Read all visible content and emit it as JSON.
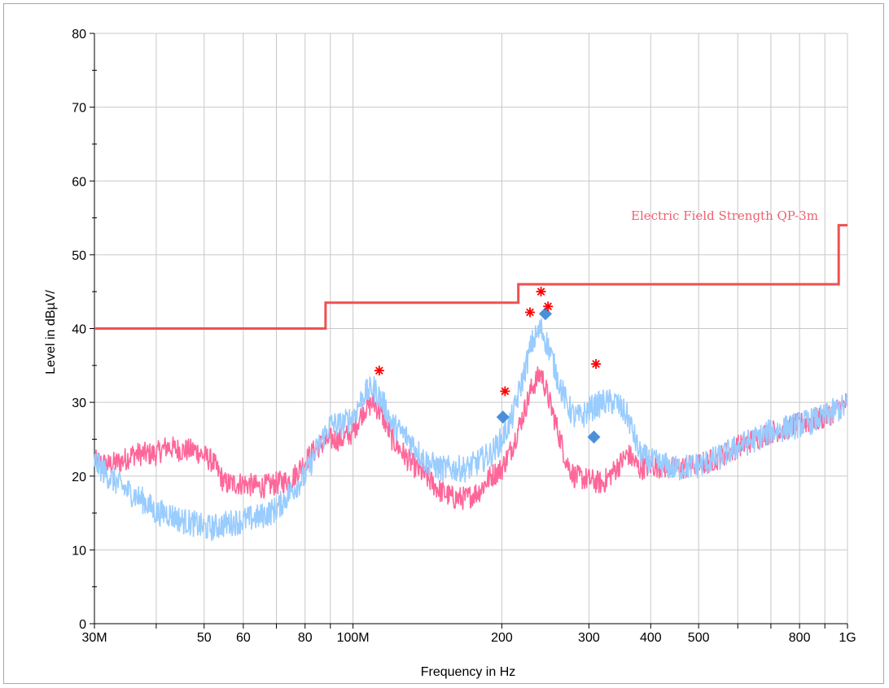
{
  "chart_data": {
    "type": "line",
    "title": "",
    "xlabel": "Frequency in Hz",
    "ylabel": "Level in dBµV/",
    "xscale": "log",
    "xlim": [
      30000000,
      1000000000
    ],
    "ylim": [
      0,
      80
    ],
    "grid": true,
    "x_ticks": [
      {
        "value": 30000000,
        "label": "30M"
      },
      {
        "value": 40000000,
        "label": ""
      },
      {
        "value": 50000000,
        "label": "50"
      },
      {
        "value": 60000000,
        "label": "60"
      },
      {
        "value": 70000000,
        "label": ""
      },
      {
        "value": 80000000,
        "label": "80"
      },
      {
        "value": 90000000,
        "label": ""
      },
      {
        "value": 100000000,
        "label": "100M"
      },
      {
        "value": 200000000,
        "label": "200"
      },
      {
        "value": 300000000,
        "label": "300"
      },
      {
        "value": 400000000,
        "label": "400"
      },
      {
        "value": 500000000,
        "label": "500"
      },
      {
        "value": 600000000,
        "label": ""
      },
      {
        "value": 700000000,
        "label": ""
      },
      {
        "value": 800000000,
        "label": "800"
      },
      {
        "value": 900000000,
        "label": ""
      },
      {
        "value": 1000000000,
        "label": "1G"
      }
    ],
    "y_ticks": [
      {
        "value": 0,
        "label": "0"
      },
      {
        "value": 10,
        "label": "10"
      },
      {
        "value": 20,
        "label": "20"
      },
      {
        "value": 30,
        "label": "30"
      },
      {
        "value": 40,
        "label": "40"
      },
      {
        "value": 50,
        "label": "50"
      },
      {
        "value": 60,
        "label": "60"
      },
      {
        "value": 70,
        "label": "70"
      },
      {
        "value": 80,
        "label": "80"
      }
    ],
    "limit_line": {
      "name": "Electric Field Strength QP-3m",
      "color": "#f05050",
      "points": [
        [
          30000000,
          40
        ],
        [
          88000000,
          40
        ],
        [
          88000000,
          43.5
        ],
        [
          216000000,
          43.5
        ],
        [
          216000000,
          46
        ],
        [
          960000000,
          46
        ],
        [
          960000000,
          54
        ],
        [
          1000000000,
          54
        ]
      ]
    },
    "series": [
      {
        "color": "#ff6699",
        "points": [
          [
            30000000,
            22
          ],
          [
            32000000,
            21.5
          ],
          [
            34000000,
            22
          ],
          [
            36000000,
            23
          ],
          [
            38000000,
            23
          ],
          [
            40000000,
            23
          ],
          [
            42000000,
            24
          ],
          [
            45000000,
            23.5
          ],
          [
            48000000,
            23.5
          ],
          [
            52000000,
            22
          ],
          [
            55000000,
            19
          ],
          [
            60000000,
            19
          ],
          [
            65000000,
            18.5
          ],
          [
            70000000,
            19
          ],
          [
            75000000,
            19.5
          ],
          [
            80000000,
            22
          ],
          [
            85000000,
            24
          ],
          [
            90000000,
            25
          ],
          [
            95000000,
            25
          ],
          [
            100000000,
            26
          ],
          [
            105000000,
            29
          ],
          [
            110000000,
            30
          ],
          [
            115000000,
            28
          ],
          [
            120000000,
            25
          ],
          [
            130000000,
            22
          ],
          [
            140000000,
            20
          ],
          [
            150000000,
            18
          ],
          [
            160000000,
            17
          ],
          [
            170000000,
            17
          ],
          [
            180000000,
            18
          ],
          [
            190000000,
            20
          ],
          [
            200000000,
            21
          ],
          [
            210000000,
            24
          ],
          [
            220000000,
            28
          ],
          [
            230000000,
            32
          ],
          [
            240000000,
            34
          ],
          [
            250000000,
            30
          ],
          [
            260000000,
            26
          ],
          [
            270000000,
            22
          ],
          [
            280000000,
            20
          ],
          [
            300000000,
            19.5
          ],
          [
            320000000,
            19
          ],
          [
            340000000,
            21
          ],
          [
            360000000,
            23
          ],
          [
            380000000,
            21
          ],
          [
            400000000,
            21.5
          ],
          [
            450000000,
            21
          ],
          [
            500000000,
            21.5
          ],
          [
            550000000,
            22.5
          ],
          [
            600000000,
            24
          ],
          [
            650000000,
            25
          ],
          [
            700000000,
            26
          ],
          [
            750000000,
            26.5
          ],
          [
            800000000,
            27
          ],
          [
            850000000,
            27.5
          ],
          [
            900000000,
            28
          ],
          [
            950000000,
            29
          ],
          [
            1000000000,
            30
          ]
        ]
      },
      {
        "color": "#99ccff",
        "points": [
          [
            30000000,
            22
          ],
          [
            32000000,
            20
          ],
          [
            35000000,
            18
          ],
          [
            38000000,
            16.5
          ],
          [
            40000000,
            15
          ],
          [
            42000000,
            15
          ],
          [
            45000000,
            14
          ],
          [
            48000000,
            13.5
          ],
          [
            50000000,
            13
          ],
          [
            52000000,
            13
          ],
          [
            55000000,
            13.5
          ],
          [
            60000000,
            14
          ],
          [
            65000000,
            14.5
          ],
          [
            70000000,
            15.5
          ],
          [
            75000000,
            18
          ],
          [
            80000000,
            20
          ],
          [
            85000000,
            24
          ],
          [
            90000000,
            27
          ],
          [
            95000000,
            27
          ],
          [
            100000000,
            28
          ],
          [
            105000000,
            31
          ],
          [
            110000000,
            32
          ],
          [
            115000000,
            30
          ],
          [
            120000000,
            27
          ],
          [
            130000000,
            25
          ],
          [
            140000000,
            22
          ],
          [
            150000000,
            21
          ],
          [
            160000000,
            21
          ],
          [
            170000000,
            21
          ],
          [
            180000000,
            22
          ],
          [
            190000000,
            23
          ],
          [
            200000000,
            25
          ],
          [
            210000000,
            28
          ],
          [
            220000000,
            33
          ],
          [
            230000000,
            38
          ],
          [
            240000000,
            40
          ],
          [
            250000000,
            37
          ],
          [
            260000000,
            33
          ],
          [
            270000000,
            30
          ],
          [
            280000000,
            28
          ],
          [
            290000000,
            28
          ],
          [
            300000000,
            29
          ],
          [
            320000000,
            30
          ],
          [
            340000000,
            30
          ],
          [
            360000000,
            28
          ],
          [
            380000000,
            23
          ],
          [
            400000000,
            22
          ],
          [
            450000000,
            21
          ],
          [
            500000000,
            21.5
          ],
          [
            550000000,
            22.5
          ],
          [
            600000000,
            24
          ],
          [
            650000000,
            25
          ],
          [
            700000000,
            26
          ],
          [
            750000000,
            26.5
          ],
          [
            800000000,
            27
          ],
          [
            850000000,
            27.5
          ],
          [
            900000000,
            28
          ],
          [
            950000000,
            29
          ],
          [
            1000000000,
            29.5
          ]
        ]
      }
    ],
    "peak_markers": {
      "color": "#ff0000",
      "points": [
        [
          113000000,
          34.3
        ],
        [
          203000000,
          31.5
        ],
        [
          228000000,
          42.2
        ],
        [
          240000000,
          45
        ],
        [
          248000000,
          43
        ],
        [
          310000000,
          35.2
        ]
      ]
    },
    "qp_markers": {
      "color": "#4a90d9",
      "points": [
        [
          201000000,
          28
        ],
        [
          245000000,
          42
        ],
        [
          307000000,
          25.3
        ]
      ]
    }
  }
}
